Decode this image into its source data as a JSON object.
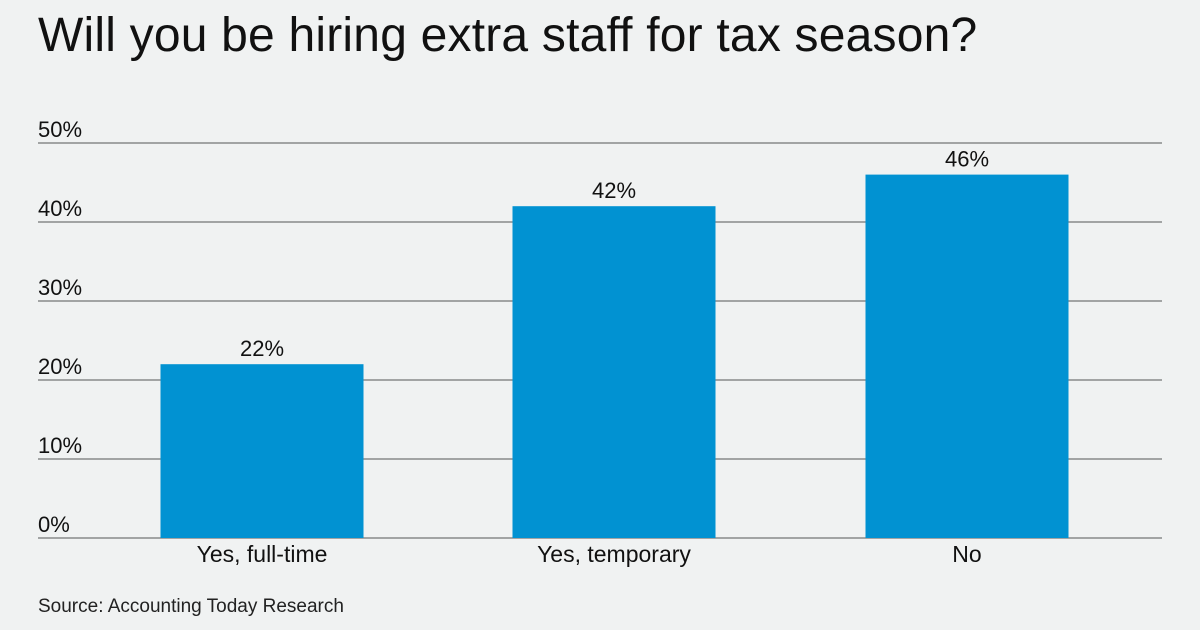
{
  "title": "Will you be hiring extra staff for tax season?",
  "source": "Source: Accounting Today Research",
  "colors": {
    "background": "#f0f2f2",
    "bar": "#0192d2",
    "gridline": "#555555",
    "text": "#111111"
  },
  "chart_data": {
    "type": "bar",
    "title": "Will you be hiring extra staff for tax season?",
    "xlabel": "",
    "ylabel": "",
    "categories": [
      "Yes, full-time",
      "Yes, temporary",
      "No"
    ],
    "values": [
      22,
      42,
      46
    ],
    "value_labels": [
      "22%",
      "42%",
      "46%"
    ],
    "ylim": [
      0,
      50
    ],
    "yticks": [
      0,
      10,
      20,
      30,
      40,
      50
    ],
    "ytick_labels": [
      "0%",
      "10%",
      "20%",
      "30%",
      "40%",
      "50%"
    ],
    "grid": true,
    "legend": "none"
  }
}
